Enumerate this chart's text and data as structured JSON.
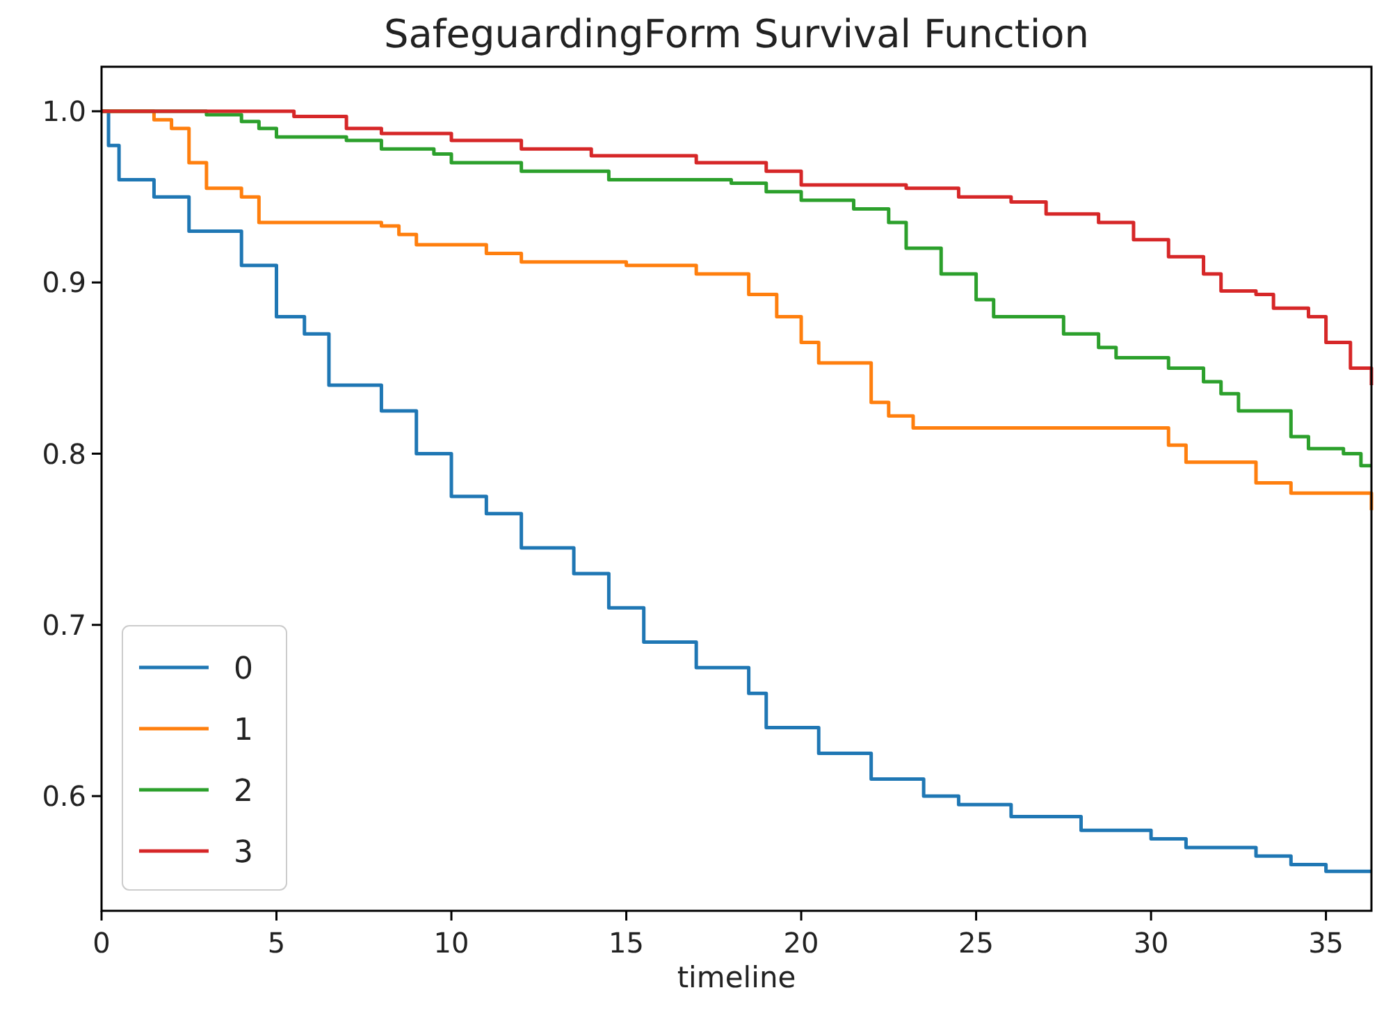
{
  "chart_data": {
    "type": "step",
    "title": "SafeguardingForm Survival Function",
    "xlabel": "timeline",
    "xlim": [
      0,
      36.3
    ],
    "ylim": [
      0.533,
      1.026
    ],
    "xticks": [
      0,
      5,
      10,
      15,
      20,
      25,
      30,
      35
    ],
    "yticks": [
      0.6,
      0.7,
      0.8,
      0.9,
      {
        "value": 1,
        "label": "1.0"
      }
    ],
    "legend": "bottom left",
    "series": [
      {
        "name": "0",
        "color": "#1f77b4",
        "x": [
          0,
          0.2,
          0.5,
          1.5,
          2.5,
          4,
          5,
          5.8,
          6.5,
          8,
          9,
          10,
          11,
          12,
          13.5,
          14.5,
          15.5,
          17,
          18.5,
          19,
          20.5,
          22,
          23.5,
          24.5,
          26,
          28,
          30,
          31,
          33,
          34,
          35,
          36.3
        ],
        "values": [
          1,
          0.98,
          0.96,
          0.95,
          0.93,
          0.91,
          0.88,
          0.87,
          0.84,
          0.825,
          0.8,
          0.775,
          0.765,
          0.745,
          0.73,
          0.71,
          0.69,
          0.675,
          0.66,
          0.64,
          0.625,
          0.61,
          0.6,
          0.595,
          0.588,
          0.58,
          0.575,
          0.57,
          0.565,
          0.56,
          0.556,
          0.556
        ]
      },
      {
        "name": "1",
        "color": "#ff7f0e",
        "x": [
          0,
          1.5,
          2,
          2.5,
          3,
          4,
          4.5,
          8,
          8.5,
          9,
          11,
          12,
          15,
          17,
          18.5,
          19.3,
          20,
          20.5,
          21.8,
          22,
          22.5,
          23.2,
          30,
          30.5,
          31,
          32.5,
          33,
          34,
          36,
          36.3
        ],
        "values": [
          1,
          0.995,
          0.99,
          0.97,
          0.955,
          0.95,
          0.935,
          0.933,
          0.928,
          0.922,
          0.917,
          0.912,
          0.91,
          0.905,
          0.893,
          0.88,
          0.865,
          0.853,
          0.853,
          0.83,
          0.822,
          0.815,
          0.815,
          0.805,
          0.795,
          0.795,
          0.783,
          0.777,
          0.777,
          0.767
        ]
      },
      {
        "name": "2",
        "color": "#2ca02c",
        "x": [
          0,
          3,
          4,
          4.5,
          5,
          7,
          8,
          9.5,
          10,
          12,
          14.5,
          18,
          19,
          20,
          21.5,
          22.5,
          23,
          24,
          25,
          25.5,
          27,
          27.5,
          28.5,
          29,
          30.5,
          31.5,
          32,
          32.5,
          33.5,
          34,
          34.5,
          35.5,
          36,
          36.3
        ],
        "values": [
          1,
          0.998,
          0.994,
          0.99,
          0.985,
          0.983,
          0.978,
          0.975,
          0.97,
          0.965,
          0.96,
          0.958,
          0.953,
          0.948,
          0.943,
          0.935,
          0.92,
          0.905,
          0.89,
          0.88,
          0.88,
          0.87,
          0.862,
          0.856,
          0.85,
          0.842,
          0.835,
          0.825,
          0.825,
          0.81,
          0.803,
          0.8,
          0.793,
          0.793
        ]
      },
      {
        "name": "3",
        "color": "#d62728",
        "x": [
          0,
          5,
          5.5,
          7,
          8,
          10,
          12,
          14,
          17,
          19,
          20,
          23,
          24.5,
          26,
          27,
          28.5,
          29.5,
          30.5,
          31.5,
          32,
          33,
          33.5,
          34.5,
          35,
          35.7,
          36.3
        ],
        "values": [
          1,
          1,
          0.997,
          0.99,
          0.987,
          0.983,
          0.978,
          0.974,
          0.97,
          0.965,
          0.957,
          0.955,
          0.95,
          0.947,
          0.94,
          0.935,
          0.925,
          0.915,
          0.905,
          0.895,
          0.893,
          0.885,
          0.88,
          0.865,
          0.85,
          0.84
        ]
      }
    ]
  }
}
